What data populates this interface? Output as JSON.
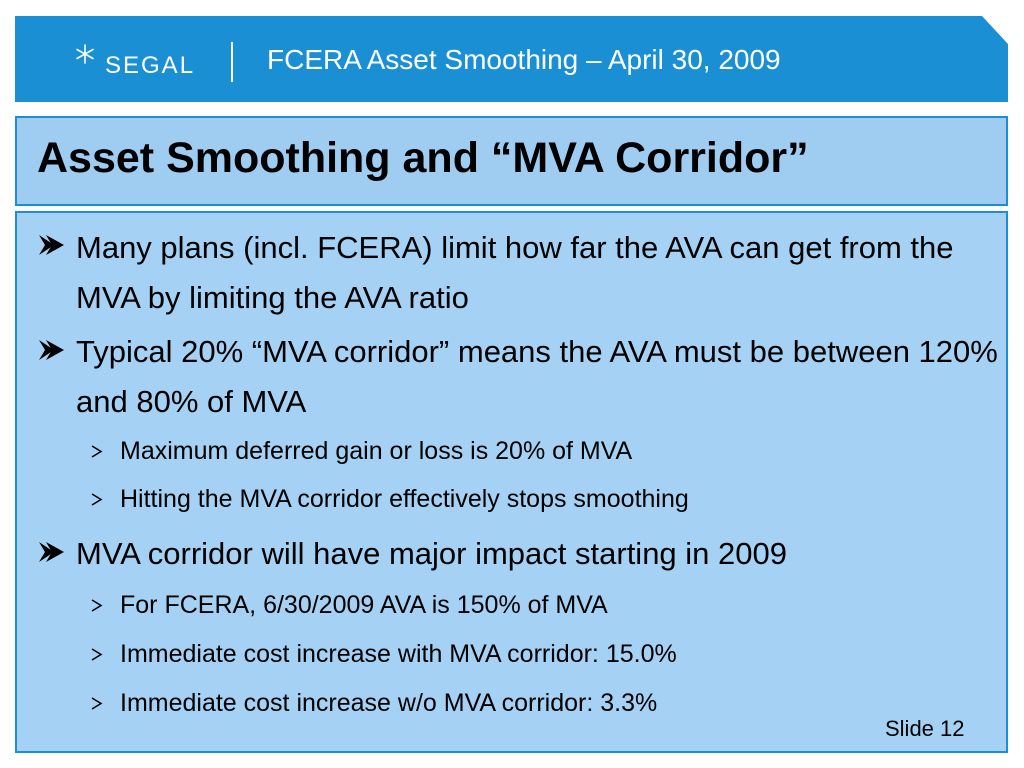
{
  "header": {
    "logo_text": "SEGAL",
    "title": "FCERA Asset Smoothing – April 30, 2009"
  },
  "slide": {
    "title": "Asset Smoothing and “MVA Corridor”",
    "bullets": [
      {
        "level": 1,
        "text": "Many plans (incl. FCERA) limit how far the AVA can get from the MVA by limiting the AVA ratio"
      },
      {
        "level": 1,
        "text": "Typical 20% “MVA corridor” means the AVA must be between 120% and 80% of MVA"
      },
      {
        "level": 2,
        "text": "Maximum deferred gain or loss is 20% of MVA"
      },
      {
        "level": 2,
        "text": "Hitting the MVA corridor effectively stops smoothing"
      },
      {
        "level": 1,
        "text": "MVA corridor will have major impact starting in 2009"
      },
      {
        "level": 2,
        "text": "For FCERA, 6/30/2009 AVA is 150% of MVA"
      },
      {
        "level": 2,
        "text": "Immediate cost increase with MVA corridor: 15.0%"
      },
      {
        "level": 2,
        "text": "Immediate cost increase w/o MVA corridor:  3.3%"
      }
    ]
  },
  "footer": {
    "slide_label": "Slide 12"
  },
  "colors": {
    "header_blue": "#1b8fd3",
    "panel_light_blue": "#a5d2f4"
  }
}
